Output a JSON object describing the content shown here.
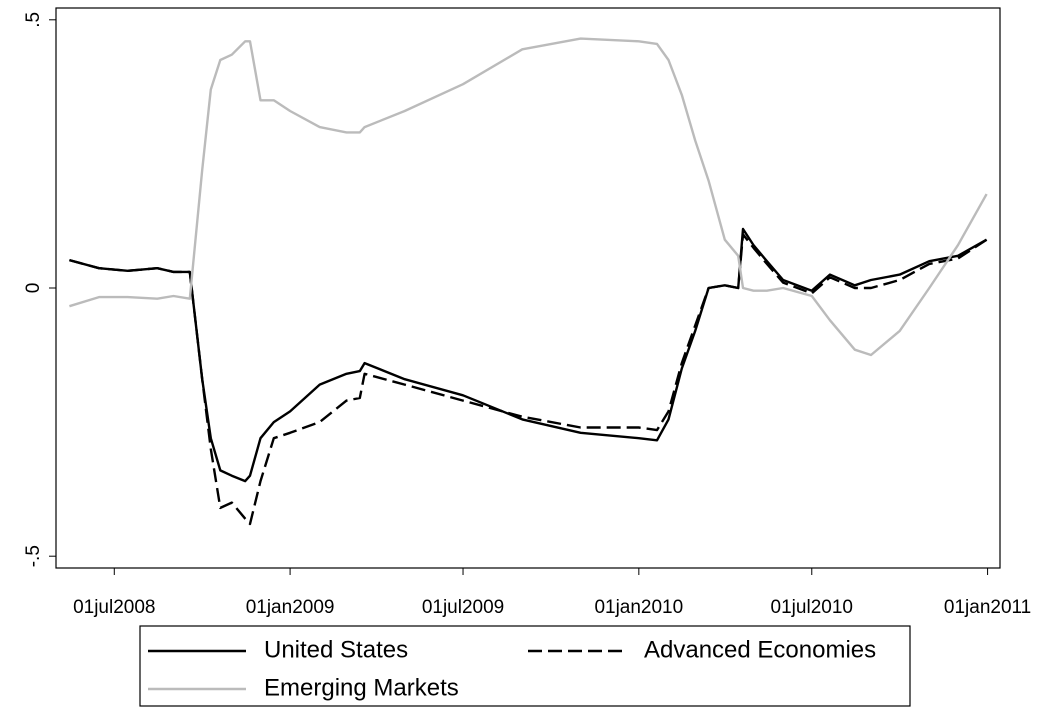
{
  "chart_data": {
    "type": "line",
    "x": [
      "2008-05-15",
      "2008-06-15",
      "2008-07-15",
      "2008-08-15",
      "2008-09-01",
      "2008-09-18",
      "2008-10-01",
      "2008-10-10",
      "2008-10-20",
      "2008-11-01",
      "2008-11-15",
      "2008-11-20",
      "2008-12-01",
      "2008-12-15",
      "2009-01-01",
      "2009-02-01",
      "2009-03-01",
      "2009-03-15",
      "2009-03-20",
      "2009-05-01",
      "2009-07-01",
      "2009-09-01",
      "2009-11-01",
      "2010-01-01",
      "2010-01-20",
      "2010-02-01",
      "2010-02-15",
      "2010-03-01",
      "2010-03-15",
      "2010-04-01",
      "2010-04-15",
      "2010-04-20",
      "2010-05-01",
      "2010-05-15",
      "2010-06-01",
      "2010-07-01",
      "2010-07-20",
      "2010-08-15",
      "2010-09-01",
      "2010-10-01",
      "2010-11-01",
      "2010-12-01",
      "2010-12-31"
    ],
    "series": [
      {
        "name": "United States",
        "color": "#000000",
        "style": "solid",
        "values": [
          0.052,
          0.037,
          0.032,
          0.037,
          0.03,
          0.03,
          -0.17,
          -0.28,
          -0.34,
          -0.35,
          -0.36,
          -0.35,
          -0.28,
          -0.25,
          -0.23,
          -0.18,
          -0.16,
          -0.155,
          -0.14,
          -0.17,
          -0.2,
          -0.245,
          -0.27,
          -0.28,
          -0.284,
          -0.245,
          -0.15,
          -0.08,
          0.0,
          0.005,
          0.0,
          0.11,
          0.08,
          0.05,
          0.015,
          -0.005,
          0.025,
          0.005,
          0.015,
          0.025,
          0.05,
          0.06,
          0.09
        ]
      },
      {
        "name": "Advanced Economies",
        "color": "#000000",
        "style": "dashed",
        "values": [
          0.052,
          0.037,
          0.032,
          0.037,
          0.03,
          0.03,
          -0.17,
          -0.3,
          -0.41,
          -0.4,
          -0.43,
          -0.44,
          -0.36,
          -0.28,
          -0.27,
          -0.25,
          -0.21,
          -0.205,
          -0.16,
          -0.18,
          -0.21,
          -0.24,
          -0.26,
          -0.26,
          -0.265,
          -0.23,
          -0.14,
          -0.07,
          0.0,
          0.005,
          0.0,
          0.1,
          0.075,
          0.045,
          0.01,
          -0.01,
          0.02,
          0.0,
          0.0,
          0.015,
          0.045,
          0.055,
          0.09
        ]
      },
      {
        "name": "Emerging Markets",
        "color": "#bbbbbb",
        "style": "solid",
        "values": [
          -0.034,
          -0.017,
          -0.017,
          -0.02,
          -0.015,
          -0.02,
          0.22,
          0.37,
          0.425,
          0.435,
          0.46,
          0.46,
          0.35,
          0.35,
          0.33,
          0.3,
          0.29,
          0.29,
          0.3,
          0.33,
          0.38,
          0.445,
          0.465,
          0.46,
          0.455,
          0.425,
          0.36,
          0.275,
          0.2,
          0.09,
          0.06,
          0.0,
          -0.005,
          -0.005,
          0.0,
          -0.015,
          -0.06,
          -0.115,
          -0.125,
          -0.08,
          0.0,
          0.08,
          0.175
        ]
      }
    ],
    "xlim": [
      "2008-05-01",
      "2011-01-14"
    ],
    "xticks": [
      {
        "value": "2008-07-01",
        "label": "01jul2008"
      },
      {
        "value": "2009-01-01",
        "label": "01jan2009"
      },
      {
        "value": "2009-07-01",
        "label": "01jul2009"
      },
      {
        "value": "2010-01-01",
        "label": "01jan2010"
      },
      {
        "value": "2010-07-01",
        "label": "01jul2010"
      },
      {
        "value": "2011-01-01",
        "label": "01jan2011"
      }
    ],
    "ylim": [
      -0.522,
      0.522
    ],
    "yticks": [
      {
        "value": -0.5,
        "label": "-.5"
      },
      0,
      {
        "value": 0.5,
        "label": ".5"
      }
    ],
    "grid": false,
    "legend": "bottom"
  }
}
